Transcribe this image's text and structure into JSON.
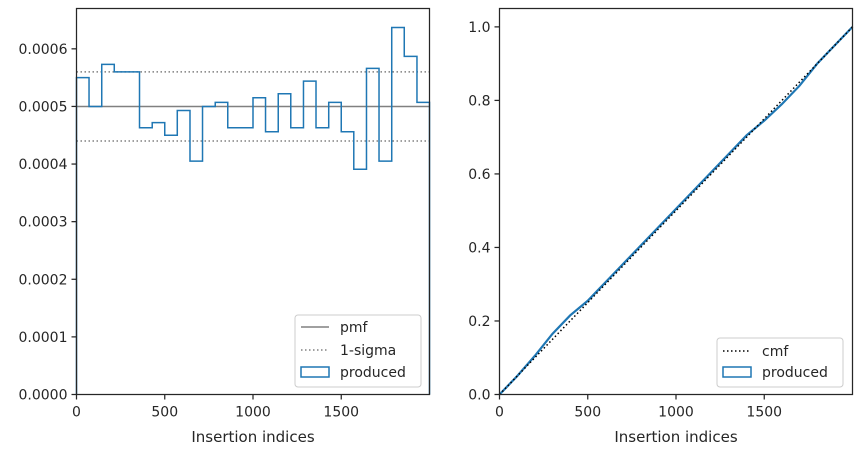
{
  "chart_data": [
    {
      "type": "step",
      "xlabel": "Insertion indices",
      "ylabel": "",
      "xlim": [
        0,
        2000
      ],
      "ylim": [
        0,
        0.00067
      ],
      "xticks": [
        0,
        500,
        1000,
        1500
      ],
      "xtick_labels": [
        "0",
        "500",
        "1000",
        "1500"
      ],
      "yticks": [
        0,
        0.0001,
        0.0002,
        0.0003,
        0.0004,
        0.0005,
        0.0006
      ],
      "ytick_labels": [
        "0.0000",
        "0.0001",
        "0.0002",
        "0.0003",
        "0.0004",
        "0.0005",
        "0.0006"
      ],
      "grid": false,
      "legend_position": "lower right",
      "bin_edges": [
        0,
        71,
        143,
        214,
        286,
        357,
        429,
        500,
        571,
        643,
        714,
        786,
        857,
        929,
        1000,
        1071,
        1143,
        1214,
        1286,
        1357,
        1429,
        1500,
        1571,
        1643,
        1714,
        1786,
        1857,
        1929,
        2000
      ],
      "pmf": 0.0005,
      "sigma_upper": 0.00056,
      "sigma_lower": 0.00044,
      "series": [
        {
          "name": "pmf",
          "style": "solid",
          "color": "#808080",
          "value": 0.0005
        },
        {
          "name": "1-sigma",
          "style": "dotted",
          "color": "#808080",
          "values": [
            0.00056,
            0.00044
          ]
        },
        {
          "name": "produced",
          "style": "step",
          "color": "#1f77b4",
          "values": [
            0.00055,
            0.0005,
            0.000573,
            0.00056,
            0.00056,
            0.000463,
            0.000472,
            0.00045,
            0.000493,
            0.000405,
            0.0005,
            0.000507,
            0.000463,
            0.000463,
            0.000515,
            0.000456,
            0.000522,
            0.000463,
            0.000544,
            0.000463,
            0.000507,
            0.000456,
            0.000391,
            0.000566,
            0.000405,
            0.000637,
            0.000587,
            0.000507,
            0.000515
          ]
        }
      ],
      "legend": [
        "pmf",
        "1-sigma",
        "produced"
      ]
    },
    {
      "type": "line",
      "xlabel": "Insertion indices",
      "ylabel": "",
      "xlim": [
        0,
        2000
      ],
      "ylim": [
        0,
        1.05
      ],
      "xticks": [
        0,
        500,
        1000,
        1500
      ],
      "xtick_labels": [
        "0",
        "500",
        "1000",
        "1500"
      ],
      "yticks": [
        0,
        0.2,
        0.4,
        0.6,
        0.8,
        1.0
      ],
      "ytick_labels": [
        "0.0",
        "0.2",
        "0.4",
        "0.6",
        "0.8",
        "1.0"
      ],
      "grid": false,
      "legend_position": "lower right",
      "series": [
        {
          "name": "cmf",
          "style": "dotted",
          "color": "#000000",
          "x": [
            0,
            2000
          ],
          "values": [
            0,
            1.0
          ]
        },
        {
          "name": "produced",
          "style": "solid",
          "color": "#1f77b4",
          "x": [
            0,
            100,
            200,
            300,
            400,
            500,
            550,
            600,
            700,
            800,
            900,
            1000,
            1100,
            1200,
            1300,
            1400,
            1500,
            1600,
            1650,
            1700,
            1800,
            1900,
            2000
          ],
          "values": [
            0,
            0.05,
            0.105,
            0.165,
            0.215,
            0.255,
            0.28,
            0.305,
            0.355,
            0.405,
            0.455,
            0.505,
            0.555,
            0.605,
            0.655,
            0.705,
            0.745,
            0.79,
            0.815,
            0.84,
            0.9,
            0.95,
            1.0
          ]
        }
      ],
      "legend": [
        "cmf",
        "produced"
      ]
    }
  ]
}
